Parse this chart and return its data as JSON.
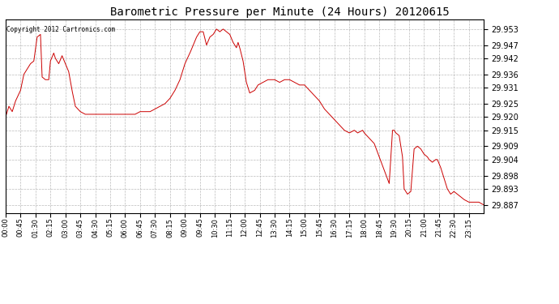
{
  "title": "Barometric Pressure per Minute (24 Hours) 20120615",
  "copyright_text": "Copyright 2012 Cartronics.com",
  "line_color": "#cc0000",
  "bg_color": "#ffffff",
  "grid_color": "#aaaaaa",
  "ylim": [
    29.884,
    29.9565
  ],
  "yticks": [
    29.953,
    29.947,
    29.942,
    29.936,
    29.931,
    29.925,
    29.92,
    29.915,
    29.909,
    29.904,
    29.898,
    29.893,
    29.887
  ],
  "xtick_labels": [
    "00:00",
    "00:45",
    "01:30",
    "02:15",
    "03:00",
    "03:45",
    "04:30",
    "05:15",
    "06:00",
    "06:45",
    "07:30",
    "08:15",
    "09:00",
    "09:45",
    "10:30",
    "11:15",
    "12:00",
    "12:45",
    "13:30",
    "14:15",
    "15:00",
    "15:45",
    "16:30",
    "17:15",
    "18:00",
    "18:45",
    "19:30",
    "20:15",
    "21:00",
    "21:45",
    "22:30",
    "23:15"
  ],
  "keypoints": [
    [
      0,
      29.92
    ],
    [
      10,
      29.924
    ],
    [
      20,
      29.922
    ],
    [
      30,
      29.926
    ],
    [
      45,
      29.93
    ],
    [
      55,
      29.936
    ],
    [
      65,
      29.938
    ],
    [
      75,
      29.94
    ],
    [
      85,
      29.941
    ],
    [
      95,
      29.95
    ],
    [
      105,
      29.951
    ],
    [
      110,
      29.935
    ],
    [
      120,
      29.934
    ],
    [
      130,
      29.934
    ],
    [
      135,
      29.941
    ],
    [
      145,
      29.944
    ],
    [
      150,
      29.942
    ],
    [
      160,
      29.94
    ],
    [
      170,
      29.943
    ],
    [
      180,
      29.94
    ],
    [
      190,
      29.937
    ],
    [
      200,
      29.93
    ],
    [
      210,
      29.924
    ],
    [
      225,
      29.922
    ],
    [
      240,
      29.921
    ],
    [
      270,
      29.921
    ],
    [
      300,
      29.921
    ],
    [
      330,
      29.921
    ],
    [
      360,
      29.921
    ],
    [
      390,
      29.921
    ],
    [
      405,
      29.922
    ],
    [
      420,
      29.922
    ],
    [
      435,
      29.922
    ],
    [
      450,
      29.923
    ],
    [
      465,
      29.924
    ],
    [
      480,
      29.925
    ],
    [
      495,
      29.927
    ],
    [
      510,
      29.93
    ],
    [
      525,
      29.934
    ],
    [
      540,
      29.94
    ],
    [
      555,
      29.944
    ],
    [
      565,
      29.947
    ],
    [
      575,
      29.95
    ],
    [
      585,
      29.952
    ],
    [
      595,
      29.952
    ],
    [
      605,
      29.947
    ],
    [
      615,
      29.95
    ],
    [
      625,
      29.951
    ],
    [
      635,
      29.953
    ],
    [
      645,
      29.952
    ],
    [
      655,
      29.953
    ],
    [
      665,
      29.952
    ],
    [
      675,
      29.951
    ],
    [
      685,
      29.948
    ],
    [
      695,
      29.946
    ],
    [
      700,
      29.948
    ],
    [
      705,
      29.946
    ],
    [
      715,
      29.941
    ],
    [
      725,
      29.933
    ],
    [
      735,
      29.929
    ],
    [
      750,
      29.93
    ],
    [
      760,
      29.932
    ],
    [
      775,
      29.933
    ],
    [
      790,
      29.934
    ],
    [
      810,
      29.934
    ],
    [
      825,
      29.933
    ],
    [
      840,
      29.934
    ],
    [
      855,
      29.934
    ],
    [
      870,
      29.933
    ],
    [
      885,
      29.932
    ],
    [
      900,
      29.932
    ],
    [
      915,
      29.93
    ],
    [
      930,
      29.928
    ],
    [
      945,
      29.926
    ],
    [
      960,
      29.923
    ],
    [
      975,
      29.921
    ],
    [
      990,
      29.919
    ],
    [
      1005,
      29.917
    ],
    [
      1020,
      29.915
    ],
    [
      1035,
      29.914
    ],
    [
      1050,
      29.915
    ],
    [
      1060,
      29.914
    ],
    [
      1075,
      29.915
    ],
    [
      1080,
      29.914
    ],
    [
      1095,
      29.912
    ],
    [
      1110,
      29.91
    ],
    [
      1125,
      29.905
    ],
    [
      1140,
      29.9
    ],
    [
      1155,
      29.895
    ],
    [
      1165,
      29.915
    ],
    [
      1170,
      29.915
    ],
    [
      1175,
      29.914
    ],
    [
      1185,
      29.913
    ],
    [
      1195,
      29.905
    ],
    [
      1200,
      29.893
    ],
    [
      1210,
      29.891
    ],
    [
      1220,
      29.892
    ],
    [
      1230,
      29.908
    ],
    [
      1240,
      29.909
    ],
    [
      1250,
      29.908
    ],
    [
      1260,
      29.906
    ],
    [
      1270,
      29.905
    ],
    [
      1275,
      29.904
    ],
    [
      1285,
      29.903
    ],
    [
      1295,
      29.904
    ],
    [
      1300,
      29.904
    ],
    [
      1310,
      29.901
    ],
    [
      1320,
      29.897
    ],
    [
      1330,
      29.893
    ],
    [
      1340,
      29.891
    ],
    [
      1350,
      29.892
    ],
    [
      1360,
      29.891
    ],
    [
      1370,
      29.89
    ],
    [
      1380,
      29.889
    ],
    [
      1395,
      29.888
    ],
    [
      1410,
      29.888
    ],
    [
      1425,
      29.888
    ],
    [
      1439,
      29.887
    ]
  ]
}
